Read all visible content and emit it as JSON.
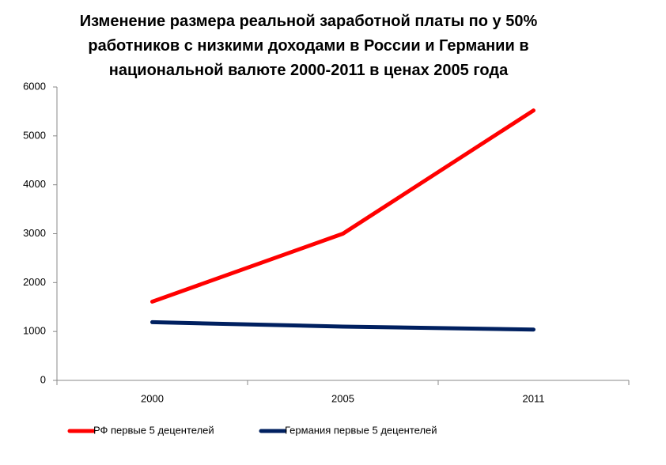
{
  "chart_data": {
    "type": "line",
    "title": "Изменение размера реальной заработной платы по у 50% работников с низкими доходами в России и Германии в национальной валюте 2000-2011 в ценах 2005 года",
    "categories": [
      "2000",
      "2005",
      "2011"
    ],
    "series": [
      {
        "name": "РФ первые 5 децентелей",
        "color": "#ff0000",
        "values": [
          1610,
          3000,
          5520
        ]
      },
      {
        "name": "Германия первые 5 децентелей",
        "color": "#002060",
        "values": [
          1190,
          1100,
          1040
        ]
      }
    ],
    "ylim": [
      0,
      6000
    ],
    "yticks": [
      0,
      1000,
      2000,
      3000,
      4000,
      5000,
      6000
    ],
    "grid": false,
    "legend": "bottom"
  }
}
